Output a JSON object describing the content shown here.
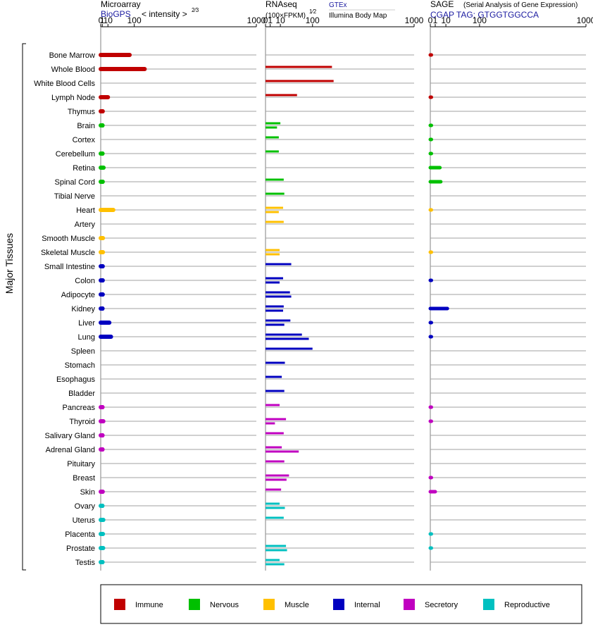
{
  "headers": {
    "microarray_title": "Microarray",
    "microarray_source": "BioGPS",
    "microarray_unit": "< intensity >",
    "microarray_exp": "2⁄3",
    "rnaseq_title": "RNAseq",
    "rnaseq_unit": "(100×FPKM)",
    "rnaseq_exp": "1⁄2",
    "rnaseq_source_1": "GTEx",
    "rnaseq_source_2": "Illumina Body Map",
    "sage_title": "SAGE",
    "sage_subtitle": "(Serial Analysis of Gene Expression)",
    "sage_tag": "CGAP TAG: GTGGTGGCCA"
  },
  "y_axis_label": "Major Tissues",
  "chart_data": {
    "type": "bar",
    "orientation": "horizontal",
    "x_scale": "power (microarray ^2/3, RNAseq ^1/2, SAGE ^1/2)",
    "panels": [
      {
        "name": "Microarray",
        "ticks": [
          "0",
          "1",
          "10",
          "100",
          "1000"
        ],
        "xlim": [
          0,
          1000
        ]
      },
      {
        "name": "RNAseq",
        "ticks": [
          "0",
          "1",
          "10",
          "100",
          "1000"
        ],
        "xlim": [
          0,
          1000
        ]
      },
      {
        "name": "SAGE",
        "ticks": [
          "0",
          "1",
          "10",
          "100",
          "1000"
        ],
        "xlim": [
          0,
          1000
        ]
      }
    ],
    "categories": [
      "Bone Marrow",
      "Whole Blood",
      "White Blood Cells",
      "Lymph Node",
      "Thymus",
      "Brain",
      "Cortex",
      "Cerebellum",
      "Retina",
      "Spinal Cord",
      "Tibial Nerve",
      "Heart",
      "Artery",
      "Smooth Muscle",
      "Skeletal Muscle",
      "Small Intestine",
      "Colon",
      "Adipocyte",
      "Kidney",
      "Liver",
      "Lung",
      "Spleen",
      "Stomach",
      "Esophagus",
      "Bladder",
      "Pancreas",
      "Thyroid",
      "Salivary Gland",
      "Adrenal Gland",
      "Pituitary",
      "Breast",
      "Skin",
      "Ovary",
      "Uterus",
      "Placenta",
      "Prostate",
      "Testis"
    ],
    "groups": [
      "Immune",
      "Immune",
      "Immune",
      "Immune",
      "Immune",
      "Nervous",
      "Nervous",
      "Nervous",
      "Nervous",
      "Nervous",
      "Nervous",
      "Muscle",
      "Muscle",
      "Muscle",
      "Muscle",
      "Internal",
      "Internal",
      "Internal",
      "Internal",
      "Internal",
      "Internal",
      "Internal",
      "Internal",
      "Internal",
      "Internal",
      "Secretory",
      "Secretory",
      "Secretory",
      "Secretory",
      "Secretory",
      "Secretory",
      "Secretory",
      "Reproductive",
      "Reproductive",
      "Reproductive",
      "Reproductive",
      "Reproductive"
    ],
    "microarray": [
      80,
      150,
      null,
      10,
      1.5,
      1.3,
      null,
      1.3,
      2.5,
      1.5,
      null,
      23,
      null,
      1.7,
      1.7,
      1.5,
      1.5,
      1.5,
      1.3,
      13,
      17,
      null,
      null,
      null,
      null,
      1.3,
      2.2,
      1.3,
      1.3,
      null,
      null,
      1.5,
      1.2,
      2.2,
      1.7,
      2.0,
      1.3
    ],
    "rnaseq_gtex": [
      null,
      200,
      210,
      45,
      null,
      10,
      8,
      8,
      null,
      15,
      16,
      14,
      15,
      null,
      9,
      30,
      14,
      27,
      15,
      28,
      60,
      100,
      17,
      12,
      16,
      9,
      19,
      15,
      12,
      16,
      25,
      11,
      9,
      15,
      null,
      19,
      9
    ],
    "rnaseq_ibm": [
      null,
      null,
      null,
      null,
      null,
      6,
      null,
      null,
      null,
      null,
      null,
      8,
      null,
      null,
      9,
      null,
      9,
      30,
      14,
      16,
      85,
      null,
      null,
      null,
      null,
      null,
      4,
      null,
      50,
      null,
      20,
      null,
      17,
      null,
      null,
      21,
      16
    ],
    "sage": [
      0.004,
      null,
      null,
      0.004,
      null,
      0.004,
      0.004,
      0.004,
      3.8,
      4.5,
      null,
      0.004,
      null,
      null,
      0.004,
      null,
      0.004,
      null,
      12,
      0.004,
      0.004,
      null,
      null,
      null,
      null,
      0.004,
      0.004,
      null,
      null,
      null,
      0.004,
      1.0,
      null,
      null,
      0.004,
      0.004,
      null
    ],
    "legend": [
      {
        "name": "Immune",
        "color": "#c00000"
      },
      {
        "name": "Nervous",
        "color": "#00c000"
      },
      {
        "name": "Muscle",
        "color": "#ffc000"
      },
      {
        "name": "Internal",
        "color": "#0000c0"
      },
      {
        "name": "Secretory",
        "color": "#c000c0"
      },
      {
        "name": "Reproductive",
        "color": "#00c0c0"
      }
    ]
  }
}
